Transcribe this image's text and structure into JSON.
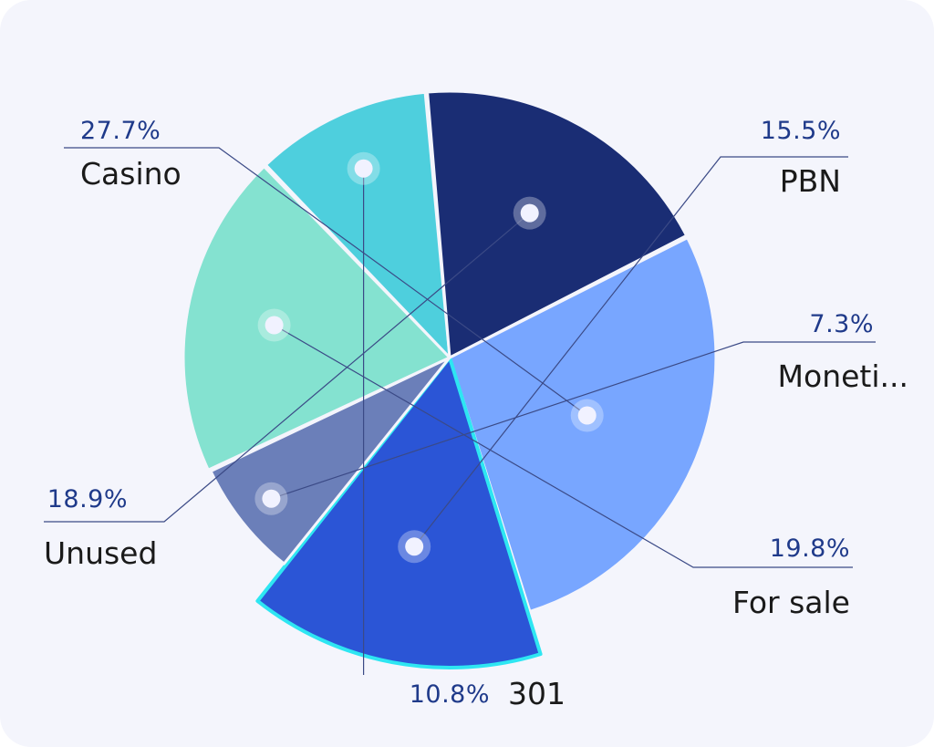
{
  "chart_data": {
    "type": "pie",
    "title": "",
    "slices": [
      {
        "label": "Casino",
        "value": 27.7,
        "value_label": "27.7%",
        "color": "#78a6ff",
        "exploded": false,
        "highlighted": false
      },
      {
        "label": "PBN",
        "value": 15.5,
        "value_label": "15.5%",
        "color": "#2b55d6",
        "exploded": true,
        "highlighted": true
      },
      {
        "label": "Moneti...",
        "value": 7.3,
        "value_label": "7.3%",
        "color": "#6b7fb9",
        "exploded": false,
        "highlighted": false
      },
      {
        "label": "For sale",
        "value": 19.8,
        "value_label": "19.8%",
        "color": "#84e2d0",
        "exploded": false,
        "highlighted": false
      },
      {
        "label": "301",
        "value": 10.8,
        "value_label": "10.8%",
        "color": "#4ecfdd",
        "exploded": false,
        "highlighted": false
      },
      {
        "label": "Unused",
        "value": 18.9,
        "value_label": "18.9%",
        "color": "#1a2d74",
        "exploded": false,
        "highlighted": false
      }
    ],
    "legend": "none",
    "labels": "outside-with-leader-lines",
    "highlight_color": "#2ee6f2",
    "percent_color": "#1f3a8a"
  }
}
